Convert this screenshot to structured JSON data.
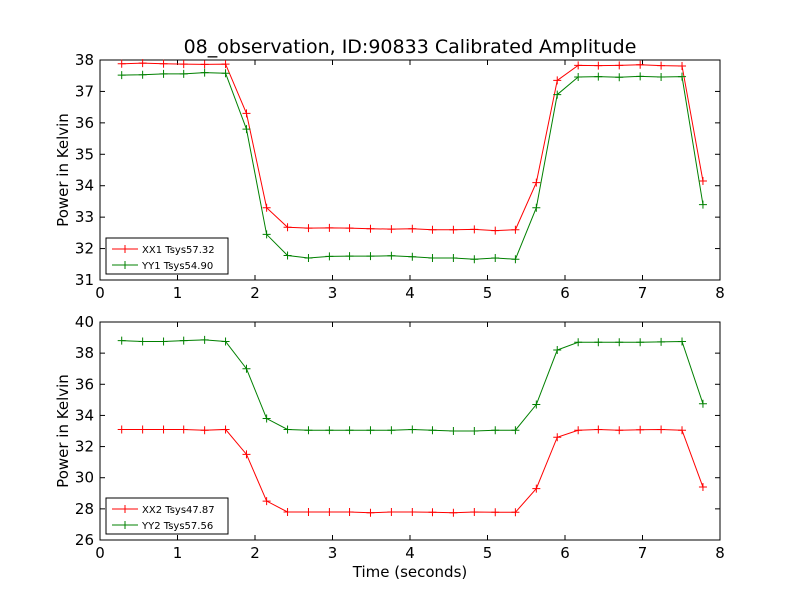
{
  "title": "08_observation, ID:90833 Calibrated Amplitude",
  "chart_data": [
    {
      "type": "line",
      "xlabel": "",
      "ylabel": "Power in Kelvin",
      "xlim": [
        0,
        8
      ],
      "ylim": [
        31,
        38
      ],
      "xticks": [
        0,
        1,
        2,
        3,
        4,
        5,
        6,
        7,
        8
      ],
      "yticks": [
        31,
        32,
        33,
        34,
        35,
        36,
        37,
        38
      ],
      "grid": false,
      "legend_position": "lower-left",
      "x": [
        0.28,
        0.55,
        0.82,
        1.08,
        1.35,
        1.62,
        1.89,
        2.15,
        2.42,
        2.69,
        2.96,
        3.22,
        3.49,
        3.76,
        4.03,
        4.29,
        4.56,
        4.83,
        5.1,
        5.36,
        5.63,
        5.9,
        6.17,
        6.43,
        6.7,
        6.97,
        7.24,
        7.51,
        7.78
      ],
      "series": [
        {
          "name": "XX1 Tsys57.32",
          "color": "#ff0000",
          "values": [
            37.88,
            37.9,
            37.88,
            37.87,
            37.86,
            37.87,
            36.3,
            33.3,
            32.68,
            32.65,
            32.66,
            32.65,
            32.63,
            32.62,
            32.63,
            32.6,
            32.6,
            32.61,
            32.57,
            32.6,
            34.1,
            37.35,
            37.83,
            37.82,
            37.83,
            37.85,
            37.82,
            37.81,
            34.15
          ]
        },
        {
          "name": "YY1 Tsys54.90",
          "color": "#008000",
          "values": [
            37.52,
            37.53,
            37.56,
            37.56,
            37.6,
            37.58,
            35.8,
            32.45,
            31.78,
            31.7,
            31.75,
            31.76,
            31.76,
            31.77,
            31.74,
            31.7,
            31.7,
            31.66,
            31.7,
            31.66,
            33.3,
            36.9,
            37.46,
            37.47,
            37.45,
            37.48,
            37.46,
            37.47,
            33.4
          ]
        }
      ]
    },
    {
      "type": "line",
      "xlabel": "Time (seconds)",
      "ylabel": "Power in Kelvin",
      "xlim": [
        0,
        8
      ],
      "ylim": [
        26,
        40
      ],
      "xticks": [
        0,
        1,
        2,
        3,
        4,
        5,
        6,
        7,
        8
      ],
      "yticks": [
        26,
        28,
        30,
        32,
        34,
        36,
        38,
        40
      ],
      "grid": false,
      "legend_position": "lower-left",
      "x": [
        0.28,
        0.55,
        0.82,
        1.08,
        1.35,
        1.62,
        1.89,
        2.15,
        2.42,
        2.69,
        2.96,
        3.22,
        3.49,
        3.76,
        4.03,
        4.29,
        4.56,
        4.83,
        5.1,
        5.36,
        5.63,
        5.9,
        6.17,
        6.43,
        6.7,
        6.97,
        7.24,
        7.51,
        7.78
      ],
      "series": [
        {
          "name": "XX2 Tsys47.87",
          "color": "#ff0000",
          "values": [
            33.1,
            33.1,
            33.1,
            33.1,
            33.05,
            33.1,
            31.5,
            28.5,
            27.8,
            27.8,
            27.8,
            27.8,
            27.75,
            27.8,
            27.8,
            27.78,
            27.75,
            27.8,
            27.78,
            27.78,
            29.3,
            32.6,
            33.05,
            33.1,
            33.05,
            33.08,
            33.1,
            33.05,
            29.4
          ]
        },
        {
          "name": "YY2 Tsys57.56",
          "color": "#008000",
          "values": [
            38.8,
            38.75,
            38.75,
            38.8,
            38.85,
            38.75,
            37.0,
            33.8,
            33.1,
            33.05,
            33.05,
            33.05,
            33.05,
            33.05,
            33.1,
            33.05,
            33.0,
            33.0,
            33.05,
            33.05,
            34.7,
            38.2,
            38.7,
            38.7,
            38.7,
            38.7,
            38.72,
            38.75,
            34.75
          ]
        }
      ]
    }
  ]
}
